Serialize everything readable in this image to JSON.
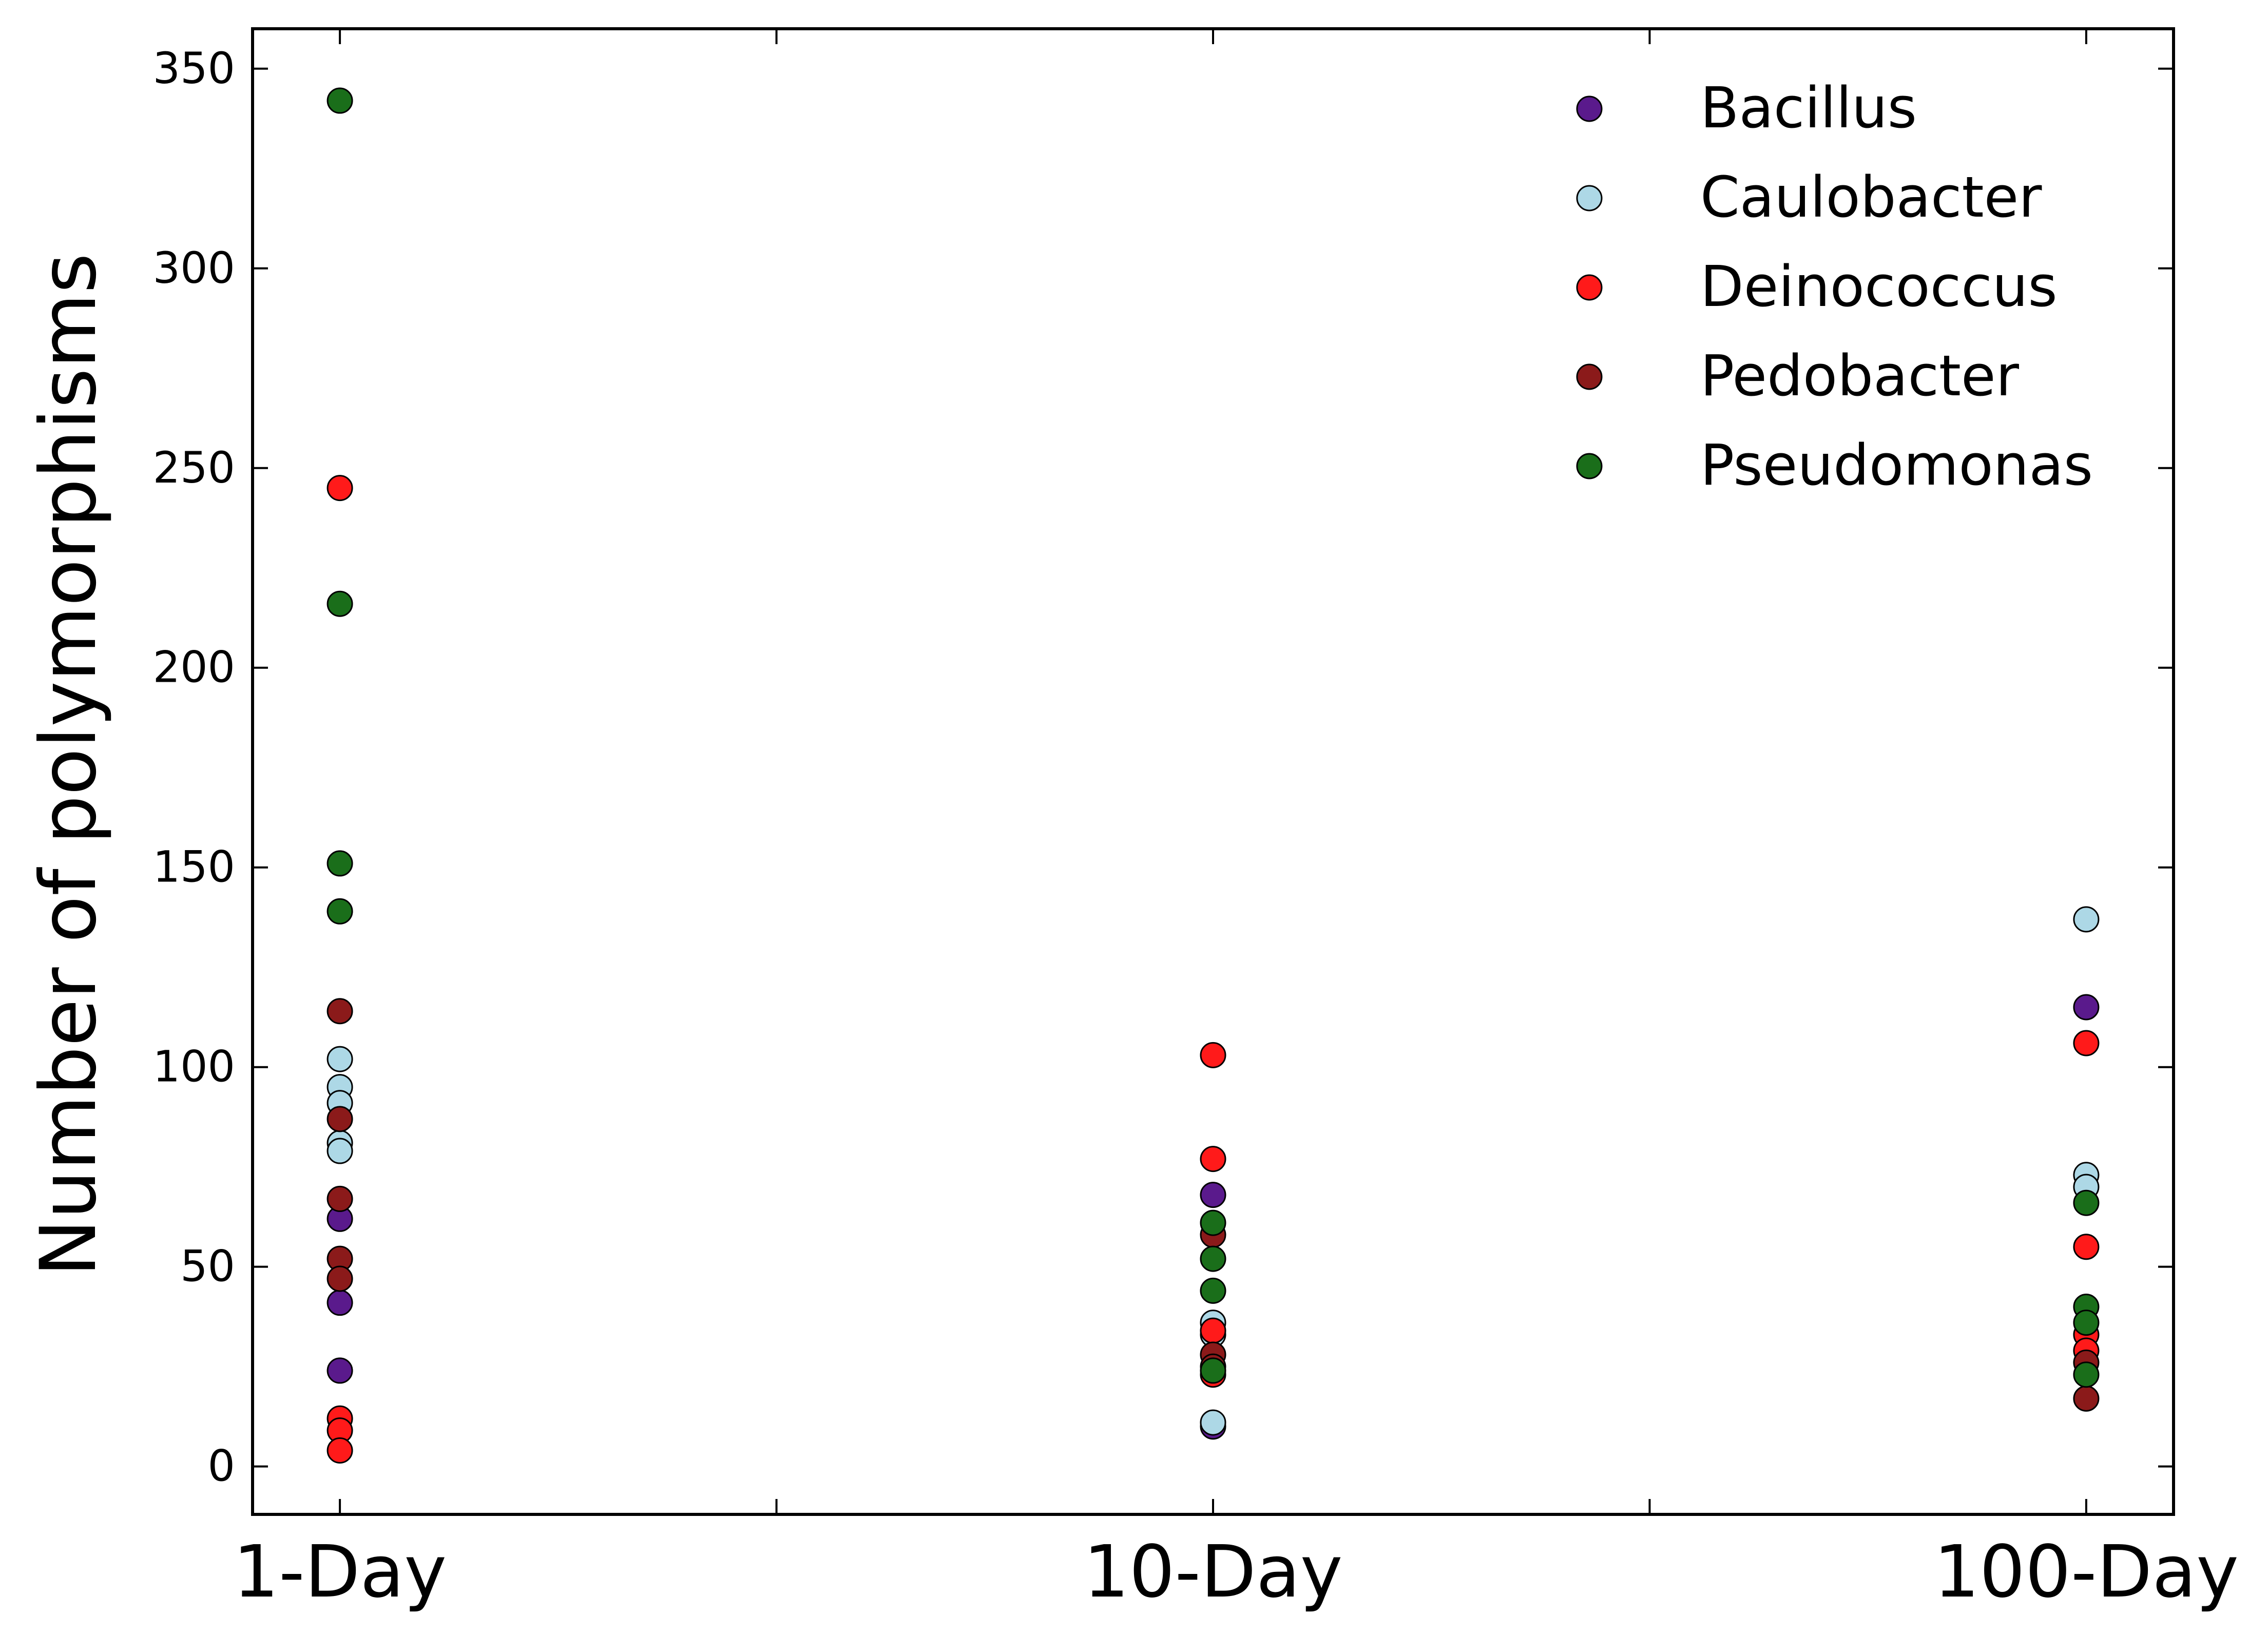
{
  "chart_data": {
    "type": "scatter",
    "title": "",
    "xlabel": "",
    "ylabel": "Number of polymorphisms",
    "categories": [
      "1-Day",
      "10-Day",
      "100-Day"
    ],
    "xlim": [
      -0.1,
      2.1
    ],
    "ylim": [
      -12,
      360
    ],
    "yticks": [
      0,
      50,
      100,
      150,
      200,
      250,
      300,
      350
    ],
    "grid": false,
    "legend_position": "top-right",
    "series": [
      {
        "name": "Bacillus",
        "color": "#5a1a8c",
        "points": [
          {
            "x": "1-Day",
            "y": 62
          },
          {
            "x": "1-Day",
            "y": 41
          },
          {
            "x": "1-Day",
            "y": 24
          },
          {
            "x": "10-Day",
            "y": 68
          },
          {
            "x": "10-Day",
            "y": 10
          },
          {
            "x": "100-Day",
            "y": 115
          }
        ]
      },
      {
        "name": "Caulobacter",
        "color": "#add8e6",
        "points": [
          {
            "x": "1-Day",
            "y": 102
          },
          {
            "x": "1-Day",
            "y": 95
          },
          {
            "x": "1-Day",
            "y": 91
          },
          {
            "x": "1-Day",
            "y": 81
          },
          {
            "x": "1-Day",
            "y": 79
          },
          {
            "x": "10-Day",
            "y": 36
          },
          {
            "x": "10-Day",
            "y": 33
          },
          {
            "x": "10-Day",
            "y": 11
          },
          {
            "x": "100-Day",
            "y": 137
          },
          {
            "x": "100-Day",
            "y": 73
          },
          {
            "x": "100-Day",
            "y": 70
          }
        ]
      },
      {
        "name": "Deinococcus",
        "color": "#ff1a1a",
        "points": [
          {
            "x": "1-Day",
            "y": 245
          },
          {
            "x": "1-Day",
            "y": 12
          },
          {
            "x": "1-Day",
            "y": 9
          },
          {
            "x": "1-Day",
            "y": 4
          },
          {
            "x": "10-Day",
            "y": 103
          },
          {
            "x": "10-Day",
            "y": 77
          },
          {
            "x": "10-Day",
            "y": 34
          },
          {
            "x": "10-Day",
            "y": 23
          },
          {
            "x": "100-Day",
            "y": 106
          },
          {
            "x": "100-Day",
            "y": 55
          },
          {
            "x": "100-Day",
            "y": 33
          },
          {
            "x": "100-Day",
            "y": 29
          }
        ]
      },
      {
        "name": "Pedobacter",
        "color": "#8b1a1a",
        "points": [
          {
            "x": "1-Day",
            "y": 114
          },
          {
            "x": "1-Day",
            "y": 87
          },
          {
            "x": "1-Day",
            "y": 67
          },
          {
            "x": "1-Day",
            "y": 52
          },
          {
            "x": "1-Day",
            "y": 47
          },
          {
            "x": "10-Day",
            "y": 58
          },
          {
            "x": "10-Day",
            "y": 28
          },
          {
            "x": "10-Day",
            "y": 25
          },
          {
            "x": "100-Day",
            "y": 26
          },
          {
            "x": "100-Day",
            "y": 17
          }
        ]
      },
      {
        "name": "Pseudomonas",
        "color": "#1a6e1a",
        "points": [
          {
            "x": "1-Day",
            "y": 342
          },
          {
            "x": "1-Day",
            "y": 216
          },
          {
            "x": "1-Day",
            "y": 151
          },
          {
            "x": "1-Day",
            "y": 139
          },
          {
            "x": "10-Day",
            "y": 61
          },
          {
            "x": "10-Day",
            "y": 52
          },
          {
            "x": "10-Day",
            "y": 44
          },
          {
            "x": "10-Day",
            "y": 24
          },
          {
            "x": "100-Day",
            "y": 66
          },
          {
            "x": "100-Day",
            "y": 40
          },
          {
            "x": "100-Day",
            "y": 36
          },
          {
            "x": "100-Day",
            "y": 23
          }
        ]
      }
    ]
  }
}
